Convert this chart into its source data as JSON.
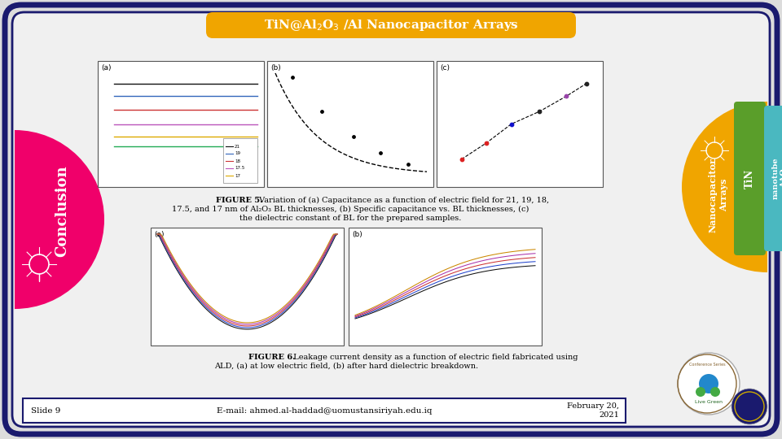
{
  "bg_color": "#dcdcdc",
  "border_color": "#1a1a6e",
  "title_text": "TiN@Al$_2$O$_3$ /Al Nanocapacitor Arrays",
  "title_bg": "#f0a500",
  "title_text_color": "#ffffff",
  "conclusion_color": "#f0006a",
  "conclusion_text": "Conclusion",
  "tab_yellow_color": "#f0a500",
  "tab_green_color": "#5a9e2a",
  "tab_teal_color": "#4ab8c0",
  "tab_dteal_color": "#2a90a8",
  "figure5_line1": "FIGURE 5. Variation of (a) Capacitance as a function of electric field for 21, 19, 18,",
  "figure5_line2": "17.5, and 17 nm of Al₂O₃ BL thicknesses, (b) Specific capacitance vs. BL thicknesses, (c)",
  "figure5_line3": "the dielectric constant of BL for the prepared samples.",
  "figure6_line1": "FIGURE 6. Leakage current density as a function of electric field fabricated using",
  "figure6_line2": "ALD, (a) at low electric field, (b) after hard dielectric breakdown.",
  "footer_slide": "Slide 9",
  "footer_email": "E-mail: ahmed.al-haddad@uomustansiriyah.edu.iq",
  "footer_date": "February 20,\n2021",
  "footer_bg": "#ffffff",
  "footer_border": "#1a1a6e",
  "inner_bg": "#f0f0f0"
}
